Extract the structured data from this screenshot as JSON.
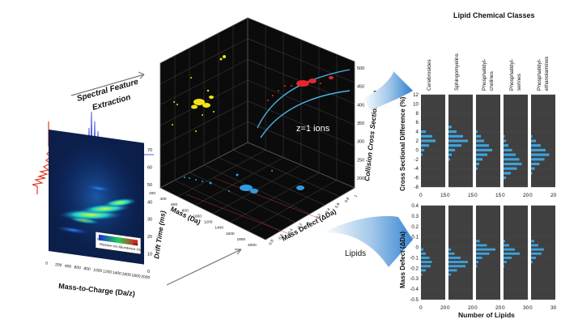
{
  "arrows": {
    "extraction_label_1": "Spectral Feature",
    "extraction_label_2": "Extraction",
    "lipids_label": "Lipids"
  },
  "heatmap": {
    "xlabel": "Mass-to-Charge (Da/z)",
    "ylabel": "Drift Time (ms)",
    "x_ticks": [
      "0",
      "200",
      "400",
      "600",
      "800",
      "1000",
      "1200",
      "1400",
      "1600",
      "1800",
      "2000"
    ],
    "y_ticks": [
      "0",
      "10",
      "20",
      "30",
      "40",
      "50",
      "60",
      "70"
    ],
    "colorbar_label": "Relative Ion Abundance (%)",
    "colorbar_ticks": [
      "0",
      "100"
    ]
  },
  "cube": {
    "zlabel": "Collision Cross Section (Å²)",
    "z_ticks": [
      "200",
      "250",
      "300",
      "350",
      "400",
      "450",
      "500"
    ],
    "mass_label": "Mass (Da)",
    "mass_ticks": [
      "200",
      "400",
      "600",
      "800",
      "1000",
      "1200",
      "1400",
      "1600",
      "1800",
      "2000"
    ],
    "defect_label": "Mass Defect (ΔDa)",
    "defect_ticks": [
      "-0.8",
      "-0.6",
      "-0.4",
      "-0.2",
      "0",
      "0.2",
      "0.4",
      "0.6",
      "0.8",
      "1"
    ],
    "ions_label": "z=1 ions",
    "colors": {
      "yellow": "#f2e414",
      "red": "#e8262a",
      "blue": "#2f9be0",
      "curve": "#4ab3e8"
    }
  },
  "classes": {
    "title": "Lipid Chemical Classes",
    "names": [
      [
        "Cerebrosides"
      ],
      [
        "Sphingomyelins"
      ],
      [
        "Phosphatidyl-",
        "cholines"
      ],
      [
        "Phosphatidyl-",
        "serines"
      ],
      [
        "Phosphatidyl-",
        "ethanolamines"
      ]
    ]
  },
  "chart_data": [
    {
      "type": "bar",
      "orientation": "horizontal",
      "ylabel": "Cross Sectional Difference (%)",
      "ylim": [
        -8,
        12
      ],
      "y_ticks": [
        "12",
        "10",
        "8",
        "6",
        "4",
        "2",
        "0",
        "-2",
        "-4",
        "-6",
        "-8"
      ],
      "x_tick_labels": [
        [
          "0",
          "15"
        ],
        [
          "0",
          "15"
        ],
        [
          "0",
          "15"
        ],
        [
          "0",
          "20"
        ],
        [
          "0",
          "20"
        ]
      ],
      "bar_color": "#3ea2dc",
      "bin_centers": [
        5,
        4,
        3,
        2,
        1,
        0,
        -1,
        -2,
        -3,
        -4,
        -5,
        -6
      ],
      "series": [
        {
          "name": "Cerebrosides",
          "xmax": 15,
          "values": [
            0,
            3,
            7,
            9,
            5,
            2,
            1,
            0,
            0,
            0,
            0,
            0
          ]
        },
        {
          "name": "Sphingomyelins",
          "xmax": 15,
          "values": [
            2,
            5,
            9,
            12,
            8,
            4,
            2,
            1,
            0,
            0,
            0,
            0
          ]
        },
        {
          "name": "Phosphatidyl-cholines",
          "xmax": 15,
          "values": [
            0,
            1,
            3,
            5,
            8,
            10,
            7,
            4,
            2,
            1,
            0,
            0
          ]
        },
        {
          "name": "Phosphatidyl-serines",
          "xmax": 20,
          "values": [
            0,
            0,
            1,
            2,
            4,
            7,
            10,
            13,
            15,
            11,
            6,
            2
          ]
        },
        {
          "name": "Phosphatidyl-ethanolamines",
          "xmax": 20,
          "values": [
            0,
            0,
            1,
            4,
            8,
            12,
            15,
            11,
            7,
            3,
            1,
            0
          ]
        }
      ]
    },
    {
      "type": "bar",
      "orientation": "horizontal",
      "ylabel": "Mass Defect (ΔDa)",
      "xlabel": "Number of Lipids",
      "ylim": [
        -0.5,
        0.4
      ],
      "y_ticks": [
        "0.4",
        "0.3",
        "0.2",
        "0.1",
        "0",
        "-0.1",
        "-0.2",
        "-0.3",
        "-0.4",
        "-0.5"
      ],
      "x_tick_labels": [
        [
          "0",
          "20"
        ],
        [
          "0",
          "20"
        ],
        [
          "0",
          "20"
        ],
        [
          "0",
          "30"
        ],
        [
          "0",
          "30"
        ]
      ],
      "bar_color": "#3ea2dc",
      "bin_centers": [
        0.06,
        0.02,
        -0.02,
        -0.06,
        -0.1,
        -0.14,
        -0.18,
        -0.22,
        -0.26
      ],
      "series": [
        {
          "name": "Cerebrosides",
          "xmax": 20,
          "values": [
            0,
            0,
            2,
            4,
            7,
            9,
            8,
            4,
            1
          ]
        },
        {
          "name": "Sphingomyelins",
          "xmax": 20,
          "values": [
            0,
            0,
            2,
            5,
            10,
            16,
            14,
            7,
            2
          ]
        },
        {
          "name": "Phosphatidyl-cholines",
          "xmax": 20,
          "values": [
            3,
            9,
            16,
            11,
            5,
            2,
            1,
            0,
            0
          ]
        },
        {
          "name": "Phosphatidyl-serines",
          "xmax": 30,
          "values": [
            2,
            7,
            14,
            20,
            10,
            4,
            1,
            0,
            0
          ]
        },
        {
          "name": "Phosphatidyl-ethanolamines",
          "xmax": 30,
          "values": [
            4,
            9,
            16,
            13,
            6,
            2,
            0,
            0,
            0
          ]
        }
      ]
    }
  ]
}
